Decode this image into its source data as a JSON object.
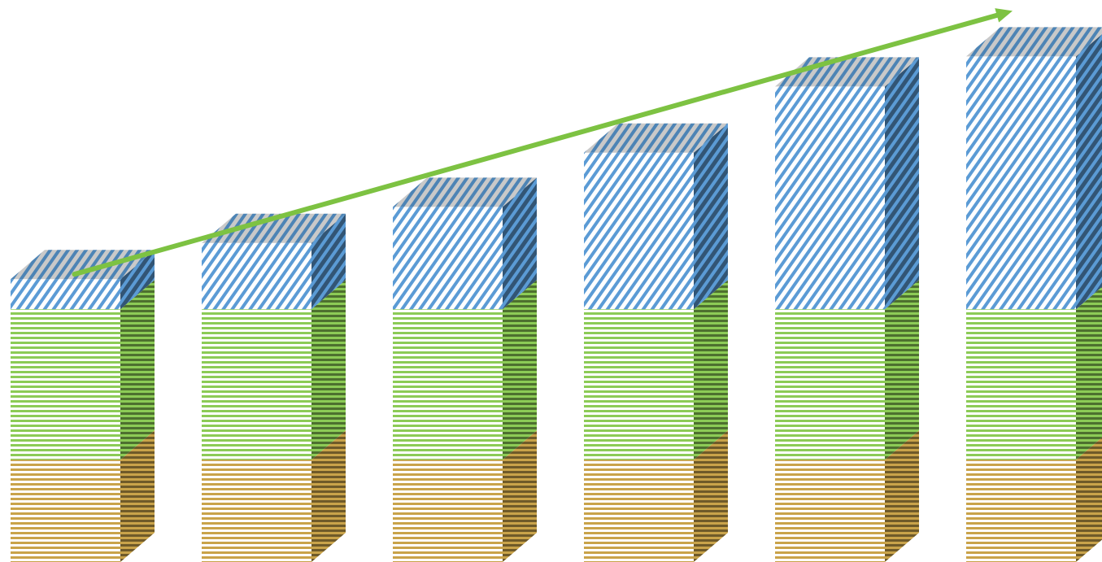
{
  "chart_data": {
    "type": "bar",
    "stacked": true,
    "three_d": true,
    "axes_visible": false,
    "categories": [
      "",
      "",
      "",
      "",
      "",
      ""
    ],
    "series": [
      {
        "values": [
          17,
          17,
          17,
          17,
          17,
          17
        ],
        "pattern": "horizontal-lines",
        "color": "#C9A34A"
      },
      {
        "values": [
          25,
          25,
          25,
          25,
          25,
          25
        ],
        "pattern": "horizontal-lines",
        "color": "#8CCB56"
      },
      {
        "values": [
          5,
          11,
          17,
          26,
          37,
          42
        ],
        "pattern": "diagonal-lines",
        "color": "#5B9BD5"
      }
    ],
    "trend_arrow": {
      "color": "#7DC242",
      "direction": "up"
    }
  }
}
